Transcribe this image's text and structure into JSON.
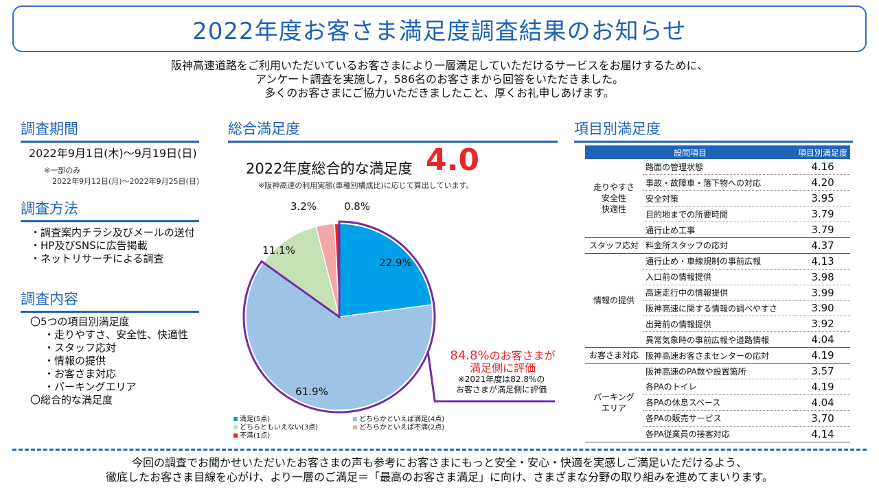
{
  "title": "2022年度お客さま満足度調査結果のお知らせ",
  "intro": [
    "阪神高速道路をご利用いただいているお客さまにより一層満足していただけるサービスをお届けするために、",
    "アンケート調査を実施し7，586名のお客さまから回答をいただきました。",
    "多くのお客さまにご協力いただきましたこと、厚くお礼申しあげます。"
  ],
  "period": {
    "heading": "調査期間",
    "main": "2022年9月1日(木)～9月19日(日)",
    "note1": "※一部のみ",
    "note2": "2022年9月12日(月)～2022年9月25日(日)"
  },
  "method": {
    "heading": "調査方法",
    "items": [
      "・調査案内チラシ及びメールの送付",
      "・HP及びSNSに広告掲載",
      "・ネットリサーチによる調査"
    ]
  },
  "content": {
    "heading": "調査内容",
    "items": [
      "〇5つの項目別満足度",
      "・走りやすさ、安全性、快適性",
      "・スタッフ応対",
      "・情報の提供",
      "・お客さま対応",
      "・パーキングエリア",
      "〇総合的な満足度"
    ]
  },
  "overall": {
    "heading": "総合満足度",
    "score_label": "2022年度総合的な満足度",
    "score": "4.0",
    "note": "※阪神高速の利用実態(車種別構成比)に応じて算出しています。",
    "callout_pct": "84.8%",
    "callout_rest": "のお客さまが",
    "callout_line2": "満足側に評価",
    "callout_note1": "※2021年度は82.8%の",
    "callout_note2": "お客さまが満足側に評価"
  },
  "chart_data": {
    "type": "pie",
    "slices": [
      {
        "name": "満足(5点)",
        "value": 22.9,
        "label": "22.9%",
        "color": "#00a0e9"
      },
      {
        "name": "どちらかといえば満足(4点)",
        "value": 61.9,
        "label": "61.9%",
        "color": "#9dc3e6"
      },
      {
        "name": "どちらともいえない(3点)",
        "value": 11.1,
        "label": "11.1%",
        "color": "#c5e0b4"
      },
      {
        "name": "どちらかといえば不満(2点)",
        "value": 3.2,
        "label": "3.2%",
        "color": "#f4a7a7"
      },
      {
        "name": "不満(1点)",
        "value": 0.8,
        "label": "0.8%",
        "color": "#e8262b"
      }
    ],
    "highlight_color": "#7030a0"
  },
  "items_section": {
    "heading": "項目別満足度",
    "col1": "設問項目",
    "col2": "項目別満足度",
    "groups": [
      {
        "name": "走りやすさ\n安全性\n快適性",
        "rows": [
          {
            "label": "路面の管理状態",
            "value": "4.16"
          },
          {
            "label": "事故・故障車・落下物への対応",
            "value": "4.20"
          },
          {
            "label": "安全対策",
            "value": "3.95"
          },
          {
            "label": "目的地までの所要時間",
            "value": "3.79"
          },
          {
            "label": "通行止め工事",
            "value": "3.79"
          }
        ]
      },
      {
        "name": "スタッフ応対",
        "rows": [
          {
            "label": "料金所スタッフの応対",
            "value": "4.37"
          }
        ]
      },
      {
        "name": "情報の提供",
        "rows": [
          {
            "label": "通行止め・車線規制の事前広報",
            "value": "4.13"
          },
          {
            "label": "入口前の情報提供",
            "value": "3.98"
          },
          {
            "label": "高速走行中の情報提供",
            "value": "3.99"
          },
          {
            "label": "阪神高速に関する情報の調べやすさ",
            "value": "3.90"
          },
          {
            "label": "出発前の情報提供",
            "value": "3.92"
          },
          {
            "label": "異常気象時の事前広報や道路情報",
            "value": "4.04"
          }
        ]
      },
      {
        "name": "お客さま対応",
        "rows": [
          {
            "label": "阪神高速お客さまセンターの応対",
            "value": "4.19"
          }
        ]
      },
      {
        "name": "パーキング\nエリア",
        "rows": [
          {
            "label": "阪神高速のPA数や設置箇所",
            "value": "3.57"
          },
          {
            "label": "各PAのトイレ",
            "value": "4.19"
          },
          {
            "label": "各PAの休息スペース",
            "value": "4.04"
          },
          {
            "label": "各PAの販売サービス",
            "value": "3.70"
          },
          {
            "label": "各PA従業員の接客対応",
            "value": "4.14"
          }
        ]
      }
    ]
  },
  "closing": [
    "今回の調査でお聞かせいただいたお客さまの声も参考にお客さまにもっと安全・安心・快適を実感しご満足いただけるよう、",
    "徹底したお客さま目線を心がけ、より一層のご満足＝「最高のお客さま満足」に向け、さまざまな分野の取り組みを進めてまいります。"
  ]
}
